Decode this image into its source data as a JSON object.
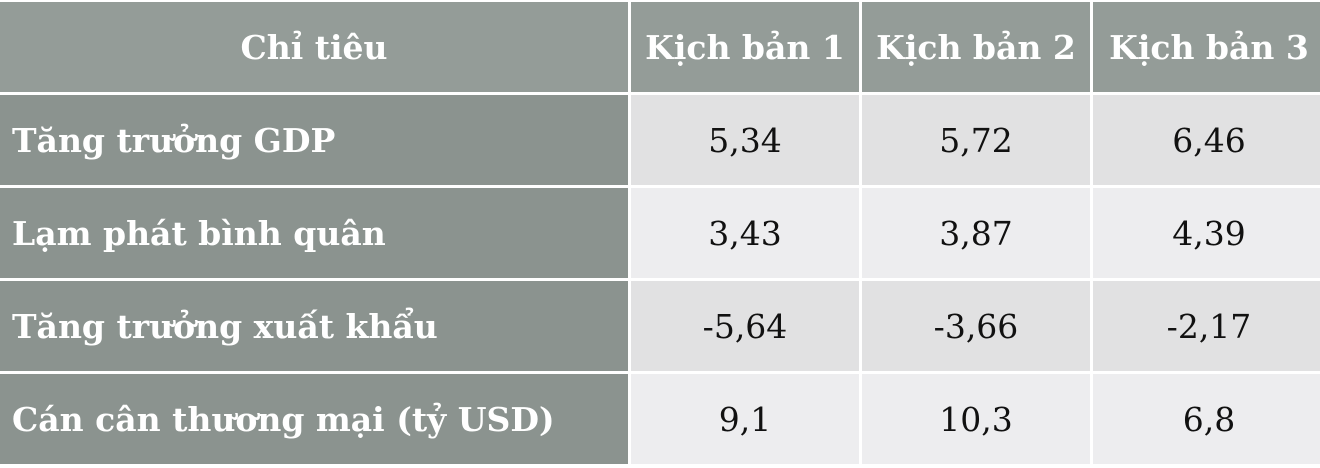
{
  "table": {
    "header": [
      "Chỉ tiêu",
      "Kịch bản 1",
      "Kịch bản 2",
      "Kịch bản 3"
    ],
    "rows": [
      [
        "Tăng trưởng GDP",
        "5,34",
        "5,72",
        "6,46"
      ],
      [
        "Lạm phát bình quân",
        "3,43",
        "3,87",
        "4,39"
      ],
      [
        "Tăng trưởng xuất khẩu",
        "-5,64",
        "-3,66",
        "-2,17"
      ],
      [
        "Cán cân thương mại (tỷ USD)",
        "9,1",
        "10,3",
        "6,8"
      ]
    ]
  }
}
